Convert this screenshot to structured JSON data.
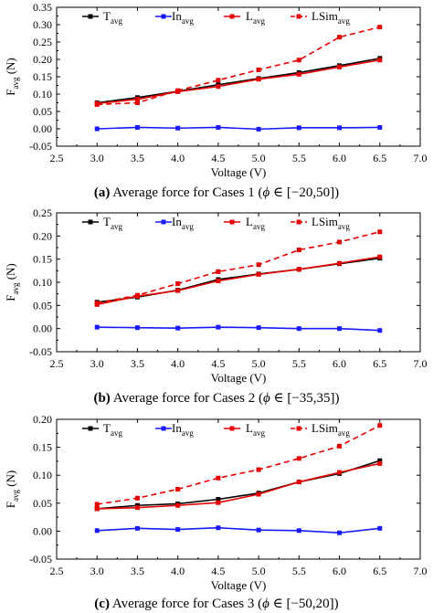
{
  "colors": {
    "T_avg": "#000000",
    "In_avg": "#1a1aff",
    "L_avg": "#e60000",
    "LSim_avg": "#e60000"
  },
  "chart_data": [
    {
      "type": "line",
      "caption": {
        "bold": "(a)",
        "text": " Average force for Cases 1 (",
        "phi": "ϕ",
        "rest": " ∈ [−20,50])"
      },
      "xlabel": "Voltage (V)",
      "ylabel": {
        "main": "F",
        "sub": "avg",
        "unit": " (N)"
      },
      "xlim": [
        2.5,
        7.0
      ],
      "ylim": [
        -0.05,
        0.35
      ],
      "xticks": [
        "2.5",
        "3.0",
        "3.5",
        "4.0",
        "4.5",
        "5.0",
        "5.5",
        "6.0",
        "6.5",
        "7.0"
      ],
      "yticks": [
        "-0.05",
        "0.00",
        "0.05",
        "0.10",
        "0.15",
        "0.20",
        "0.25",
        "0.30",
        "0.35"
      ],
      "x": [
        3.0,
        3.5,
        4.0,
        4.5,
        5.0,
        5.5,
        6.0,
        6.5
      ],
      "grid": false,
      "legend_position": "top",
      "series": [
        {
          "key": "T_avg",
          "name": "T",
          "sub": "avg",
          "style": "solid",
          "marker": "square",
          "values": [
            0.075,
            0.09,
            0.108,
            0.127,
            0.145,
            0.162,
            0.182,
            0.203
          ]
        },
        {
          "key": "In_avg",
          "name": "In",
          "sub": "avg",
          "style": "solid",
          "marker": "square",
          "values": [
            0.0,
            0.004,
            0.002,
            0.004,
            -0.001,
            0.003,
            0.003,
            0.004
          ]
        },
        {
          "key": "L_avg",
          "name": "L",
          "sub": "avg",
          "style": "solid",
          "marker": "square",
          "values": [
            0.073,
            0.085,
            0.107,
            0.122,
            0.143,
            0.157,
            0.178,
            0.198
          ]
        },
        {
          "key": "LSim_avg",
          "name": "LSim",
          "sub": "avg",
          "style": "dashed",
          "marker": "square",
          "values": [
            0.07,
            0.075,
            0.11,
            0.14,
            0.17,
            0.198,
            0.264,
            0.293
          ]
        }
      ]
    },
    {
      "type": "line",
      "caption": {
        "bold": "(b)",
        "text": " Average force for Cases 2 (",
        "phi": "ϕ",
        "rest": " ∈ [−35,35])"
      },
      "xlabel": "Voltage (V)",
      "ylabel": {
        "main": "F",
        "sub": "avg",
        "unit": " (N)"
      },
      "xlim": [
        2.5,
        7.0
      ],
      "ylim": [
        -0.05,
        0.25
      ],
      "xticks": [
        "2.5",
        "3.0",
        "3.5",
        "4.0",
        "4.5",
        "5.0",
        "5.5",
        "6.0",
        "6.5",
        "7.0"
      ],
      "yticks": [
        "-0.05",
        "0.00",
        "0.05",
        "0.10",
        "0.15",
        "0.20",
        "0.25"
      ],
      "x": [
        3.0,
        3.5,
        4.0,
        4.5,
        5.0,
        5.5,
        6.0,
        6.5
      ],
      "grid": false,
      "legend_position": "top",
      "series": [
        {
          "key": "T_avg",
          "name": "T",
          "sub": "avg",
          "style": "solid",
          "marker": "square",
          "values": [
            0.057,
            0.068,
            0.083,
            0.106,
            0.118,
            0.128,
            0.14,
            0.152
          ]
        },
        {
          "key": "In_avg",
          "name": "In",
          "sub": "avg",
          "style": "solid",
          "marker": "square",
          "values": [
            0.003,
            0.002,
            0.001,
            0.003,
            0.002,
            0.0,
            0.0,
            -0.004
          ]
        },
        {
          "key": "L_avg",
          "name": "L",
          "sub": "avg",
          "style": "solid",
          "marker": "square",
          "values": [
            0.052,
            0.07,
            0.082,
            0.103,
            0.117,
            0.128,
            0.141,
            0.155
          ]
        },
        {
          "key": "LSim_avg",
          "name": "LSim",
          "sub": "avg",
          "style": "dashed",
          "marker": "square",
          "values": [
            0.055,
            0.072,
            0.097,
            0.123,
            0.138,
            0.17,
            0.187,
            0.209
          ]
        }
      ]
    },
    {
      "type": "line",
      "caption": {
        "bold": "(c)",
        "text": " Average force for Cases 3 (",
        "phi": "ϕ",
        "rest": " ∈ [−50,20])"
      },
      "xlabel": "Voltage (V)",
      "ylabel": {
        "main": "F",
        "sub": "avg",
        "unit": " (N)"
      },
      "xlim": [
        2.5,
        7.0
      ],
      "ylim": [
        -0.05,
        0.2
      ],
      "xticks": [
        "2.5",
        "3.0",
        "3.5",
        "4.0",
        "4.5",
        "5.0",
        "5.5",
        "6.0",
        "6.5",
        "7.0"
      ],
      "yticks": [
        "-0.05",
        "0.00",
        "0.05",
        "0.10",
        "0.15",
        "0.20"
      ],
      "x": [
        3.0,
        3.5,
        4.0,
        4.5,
        5.0,
        5.5,
        6.0,
        6.5
      ],
      "grid": false,
      "legend_position": "top",
      "series": [
        {
          "key": "T_avg",
          "name": "T",
          "sub": "avg",
          "style": "solid",
          "marker": "square",
          "values": [
            0.04,
            0.046,
            0.049,
            0.057,
            0.068,
            0.088,
            0.103,
            0.126
          ]
        },
        {
          "key": "In_avg",
          "name": "In",
          "sub": "avg",
          "style": "solid",
          "marker": "square",
          "values": [
            0.001,
            0.005,
            0.003,
            0.006,
            0.002,
            0.001,
            -0.003,
            0.005
          ]
        },
        {
          "key": "L_avg",
          "name": "L",
          "sub": "avg",
          "style": "solid",
          "marker": "square",
          "values": [
            0.04,
            0.042,
            0.046,
            0.051,
            0.066,
            0.088,
            0.105,
            0.121
          ]
        },
        {
          "key": "LSim_avg",
          "name": "LSim",
          "sub": "avg",
          "style": "dashed",
          "marker": "square",
          "values": [
            0.048,
            0.059,
            0.075,
            0.095,
            0.11,
            0.13,
            0.152,
            0.189
          ]
        }
      ]
    }
  ]
}
